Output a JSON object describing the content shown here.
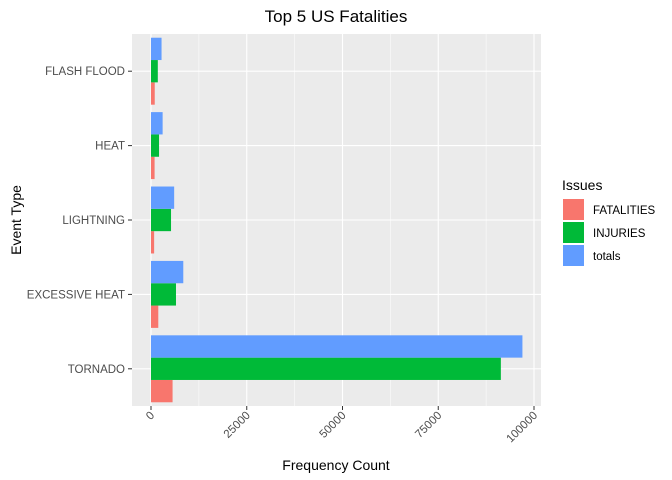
{
  "chart_data": {
    "type": "bar",
    "orientation": "horizontal",
    "title": "Top 5 US Fatalities",
    "xlabel": "Frequency Count",
    "ylabel": "Event Type",
    "categories": [
      "TORNADO",
      "EXCESSIVE HEAT",
      "LIGHTNING",
      "HEAT",
      "FLASH FLOOD"
    ],
    "series": [
      {
        "name": "FATALITIES",
        "color": "#F8766D",
        "values": [
          5633,
          1903,
          816,
          937,
          978
        ]
      },
      {
        "name": "INJURIES",
        "color": "#00BA38",
        "values": [
          91346,
          6525,
          5230,
          2100,
          1777
        ]
      },
      {
        "name": "totals",
        "color": "#619CFF",
        "values": [
          96979,
          8428,
          6046,
          3037,
          2755
        ]
      }
    ],
    "xlim": [
      0,
      100000
    ],
    "xticks": [
      0,
      25000,
      50000,
      75000,
      100000
    ],
    "xtick_labels": [
      "0",
      "25000",
      "50000",
      "75000",
      "100000"
    ],
    "legend": {
      "title": "Issues",
      "placement": "right"
    },
    "grid": true,
    "panel_background": "#EBEBEB",
    "grid_color": "#FFFFFF"
  }
}
